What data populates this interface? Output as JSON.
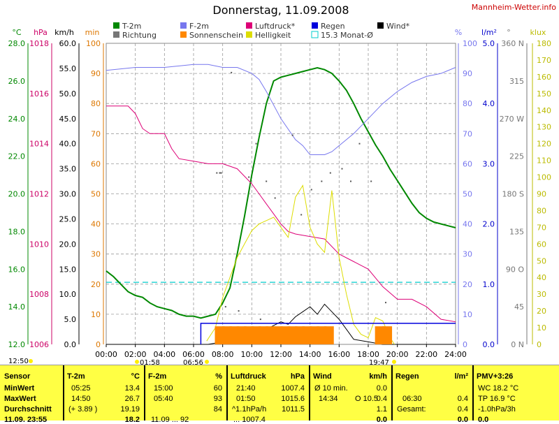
{
  "header": {
    "title": "Donnerstag, 11.09.2008",
    "brand": "Mannheim-Wetter.info"
  },
  "legend": [
    {
      "label": "T-2m",
      "color": "#008800"
    },
    {
      "label": "F-2m",
      "color": "#7777ee"
    },
    {
      "label": "Luftdruck*",
      "color": "#dd0077"
    },
    {
      "label": "Regen",
      "color": "#0000dd"
    },
    {
      "label": "Wind*",
      "color": "#000000"
    },
    {
      "label": "Richtung",
      "color": "#777777"
    },
    {
      "label": "Sonnenschein",
      "color": "#ff8800"
    },
    {
      "label": "Helligkeit",
      "color": "#dddd00"
    },
    {
      "label": "15.3 Monat-Ø",
      "color": "#00cccc"
    }
  ],
  "axes": {
    "temp": {
      "unit": "°C",
      "color": "#008800",
      "ticks": [
        "12.0",
        "14.0",
        "16.0",
        "18.0",
        "20.0",
        "22.0",
        "24.0",
        "26.0",
        "28.0"
      ]
    },
    "press": {
      "unit": "hPa",
      "color": "#cc0066",
      "ticks": [
        "1006",
        "1008",
        "1010",
        "1012",
        "1014",
        "1016",
        "1018"
      ]
    },
    "wind": {
      "unit": "km/h",
      "color": "#000000",
      "ticks": [
        "0.0",
        "5.0",
        "10.0",
        "15.0",
        "20.0",
        "25.0",
        "30.0",
        "35.0",
        "40.0",
        "45.0",
        "50.0",
        "55.0",
        "60.0"
      ]
    },
    "min": {
      "unit": "min",
      "color": "#dd7700",
      "ticks": [
        "0",
        "10",
        "20",
        "30",
        "40",
        "50",
        "60",
        "70",
        "80",
        "90",
        "100"
      ]
    },
    "hum": {
      "unit": "%",
      "color": "#7777ee",
      "ticks": [
        "0",
        "10",
        "20",
        "30",
        "40",
        "50",
        "60",
        "70",
        "80",
        "90",
        "100"
      ]
    },
    "rain": {
      "unit": "l/m²",
      "color": "#0000cc",
      "ticks": [
        "0.0",
        "1.0",
        "2.0",
        "3.0",
        "4.0",
        "5.0"
      ]
    },
    "dir": {
      "unit": "°",
      "color": "#777777",
      "ticks": [
        "0 N",
        "45",
        "90 O",
        "135",
        "180 S",
        "225",
        "270 W",
        "315",
        "360 N"
      ]
    },
    "lux": {
      "unit": "klux",
      "color": "#bbbb00",
      "ticks": [
        "0",
        "10",
        "20",
        "30",
        "40",
        "50",
        "60",
        "70",
        "80",
        "90",
        "100",
        "110",
        "120",
        "130",
        "140",
        "150",
        "160",
        "170",
        "180"
      ]
    },
    "time": [
      "00:00",
      "02:00",
      "04:00",
      "06:00",
      "08:00",
      "10:00",
      "12:00",
      "14:00",
      "16:00",
      "18:00",
      "20:00",
      "22:00",
      "24:00"
    ]
  },
  "markers": {
    "start_time": "12:50",
    "dawn": "01:58",
    "sunrise": "06:56",
    "sunset": "19:47"
  },
  "chart_data": {
    "type": "line",
    "x_unit": "hours",
    "xlim": [
      0,
      24
    ],
    "series": [
      {
        "name": "T-2m",
        "axis": "°C",
        "ylim": [
          12,
          28
        ],
        "x": [
          0,
          0.5,
          1,
          1.5,
          2,
          2.5,
          3,
          3.5,
          4,
          4.5,
          5,
          5.5,
          6,
          6.5,
          7,
          7.5,
          8,
          8.5,
          9,
          9.5,
          10,
          10.5,
          11,
          11.5,
          12,
          12.5,
          13,
          13.5,
          14,
          14.5,
          15,
          15.5,
          16,
          16.5,
          17,
          17.5,
          18,
          18.5,
          19,
          19.5,
          20,
          20.5,
          21,
          21.5,
          22,
          22.5,
          23,
          23.5,
          24
        ],
        "y": [
          15.9,
          15.6,
          15.2,
          14.8,
          14.6,
          14.5,
          14.2,
          14.0,
          13.9,
          13.8,
          13.6,
          13.5,
          13.5,
          13.4,
          13.5,
          13.6,
          14.2,
          15.0,
          16.8,
          18.8,
          21.0,
          23.0,
          24.8,
          26.0,
          26.2,
          26.3,
          26.4,
          26.5,
          26.6,
          26.7,
          26.6,
          26.4,
          26.0,
          25.5,
          24.8,
          24.0,
          23.3,
          22.6,
          22.0,
          21.3,
          20.7,
          20.1,
          19.5,
          19.0,
          18.7,
          18.5,
          18.4,
          18.3,
          18.2
        ]
      },
      {
        "name": "F-2m",
        "axis": "%",
        "ylim": [
          0,
          100
        ],
        "x": [
          0,
          2,
          4,
          6,
          7,
          8,
          9,
          10,
          10.5,
          11,
          12,
          13,
          13.5,
          14,
          15,
          15.5,
          16,
          17,
          18,
          19,
          20,
          21,
          22,
          23,
          24
        ],
        "y": [
          91,
          92,
          92,
          93,
          93,
          92,
          92,
          90,
          88,
          84,
          75,
          68,
          66,
          63,
          63,
          64,
          66,
          70,
          75,
          80,
          84,
          87,
          89,
          90,
          92
        ]
      },
      {
        "name": "Luftdruck*",
        "axis": "hPa",
        "ylim": [
          1006,
          1018
        ],
        "x": [
          0,
          1.5,
          2,
          2.5,
          3,
          4,
          4.5,
          5,
          6,
          7,
          8,
          9,
          10,
          10.5,
          11,
          11.5,
          12,
          12.5,
          13,
          14,
          15,
          16,
          17,
          18,
          19,
          20,
          21,
          22,
          23,
          24
        ],
        "y": [
          1015.5,
          1015.5,
          1015.2,
          1014.6,
          1014.4,
          1014.4,
          1013.8,
          1013.4,
          1013.3,
          1013.2,
          1013.2,
          1013.0,
          1012.4,
          1012.0,
          1011.6,
          1011.2,
          1010.8,
          1010.5,
          1010.4,
          1010.3,
          1010.2,
          1009.6,
          1009.3,
          1009.0,
          1008.3,
          1007.8,
          1007.8,
          1007.5,
          1007.0,
          1006.9
        ]
      },
      {
        "name": "Wind*",
        "axis": "km/h",
        "ylim": [
          0,
          60
        ],
        "x": [
          0,
          7,
          8,
          9,
          10,
          11,
          12,
          12.5,
          13,
          13.5,
          14,
          14.5,
          15,
          15.5,
          16,
          16.5,
          17,
          18,
          19,
          20,
          24
        ],
        "y": [
          0,
          0,
          0.5,
          1.5,
          2.5,
          3.0,
          4.5,
          4.0,
          5.5,
          6.5,
          7.5,
          6.0,
          8.0,
          6.5,
          5.0,
          3.0,
          1.0,
          0.5,
          0,
          0,
          0
        ]
      },
      {
        "name": "Helligkeit",
        "axis": "klux",
        "ylim": [
          0,
          180
        ],
        "x": [
          6.9,
          7.5,
          8,
          8.5,
          9,
          9.5,
          10,
          10.5,
          11,
          11.5,
          12,
          12.5,
          13,
          13.5,
          14,
          14.5,
          15,
          15.5,
          16,
          16.5,
          17,
          17.5,
          18,
          18.5,
          19,
          19.5,
          19.8
        ],
        "y": [
          2,
          10,
          28,
          40,
          52,
          60,
          68,
          72,
          74,
          76,
          70,
          64,
          88,
          95,
          70,
          60,
          55,
          92,
          52,
          30,
          12,
          6,
          4,
          16,
          14,
          4,
          0
        ]
      },
      {
        "name": "Regen",
        "axis": "l/m²",
        "ylim": [
          0,
          5
        ],
        "x": [
          6.5,
          7,
          8,
          10,
          12,
          14,
          16,
          18,
          20,
          22,
          24
        ],
        "y": [
          0.35,
          0.35,
          0.35,
          0.35,
          0.35,
          0.35,
          0.35,
          0.35,
          0.35,
          0.35,
          0.35
        ]
      },
      {
        "name": "Sonnenschein",
        "axis": "min",
        "ylim": [
          0,
          100
        ],
        "x": [
          7.8,
          8.3,
          8.8,
          9.3,
          9.8,
          10.3,
          10.8,
          11.3,
          11.8,
          12.3,
          12.8,
          13.3,
          13.8,
          14.3,
          14.8,
          15.3,
          18.8,
          19.3
        ],
        "y": [
          6,
          6,
          6,
          6,
          6,
          6,
          6,
          6,
          6,
          6,
          6,
          6,
          6,
          6,
          6,
          6,
          6,
          6
        ]
      }
    ],
    "monthly_mean": {
      "name": "15.3 Monat-Ø",
      "axis": "°C",
      "value": 15.3
    },
    "direction_points": [
      [
        7.6,
        205
      ],
      [
        7.8,
        205
      ],
      [
        7.9,
        205
      ],
      [
        8.6,
        325
      ],
      [
        9.8,
        200
      ],
      [
        10.3,
        240
      ],
      [
        11.0,
        195
      ],
      [
        11.6,
        175
      ],
      [
        12.8,
        250
      ],
      [
        13.4,
        155
      ],
      [
        14.1,
        185
      ],
      [
        14.8,
        195
      ],
      [
        15.4,
        205
      ],
      [
        16.2,
        210
      ],
      [
        16.8,
        195
      ],
      [
        17.4,
        240
      ],
      [
        18.2,
        195
      ],
      [
        8.2,
        45
      ],
      [
        9.1,
        40
      ],
      [
        10.6,
        30
      ],
      [
        19.2,
        50
      ]
    ],
    "grid": true
  },
  "table": {
    "headers": [
      "Sensor",
      "T-2m",
      "°C",
      "F-2m",
      "%",
      "Luftdruck",
      "hPa",
      "Wind",
      "km/h",
      "Regen",
      "l/m²",
      "PMV+3:26"
    ],
    "rows": [
      {
        "label": "MinWert",
        "t_time": "05:25",
        "t_val": "13.4",
        "f_time": "15:00",
        "f_val": "60",
        "p_time": "21:40",
        "p_val": "1007.4",
        "w_label": "Ø 10 min.",
        "w_val": "0.0",
        "r_label": "",
        "r_val": "",
        "x": "WC 18.2 °C"
      },
      {
        "label": "MaxWert",
        "t_time": "14:50",
        "t_val": "26.7",
        "f_time": "05:40",
        "f_val": "93",
        "p_time": "01:50",
        "p_val": "1015.6",
        "w_label": "14:34",
        "w_label2": "O 10.5",
        "w_val": "0.4",
        "r_label": "06:30",
        "r_val": "0.4",
        "x": "TP 16.9 °C"
      },
      {
        "label": "Durchschnitt",
        "t_time": "(+ 3.89 )",
        "t_val": "19.19",
        "f_time": "",
        "f_val": "84",
        "p_time": "^1.1hPa/h",
        "p_val": "1011.5",
        "w_label": "",
        "w_val": "1.1",
        "r_label": "Gesamt:",
        "r_val": "0.4",
        "x": "-1.0hPa/3h"
      }
    ],
    "cut_row": {
      "label": "11.09. 23:55",
      "t_val": "18.2",
      "f": "11.09 ... 92",
      "p": "... 1007.4",
      "w": "0.0",
      "r": "0.0",
      "x": "0.0"
    }
  }
}
